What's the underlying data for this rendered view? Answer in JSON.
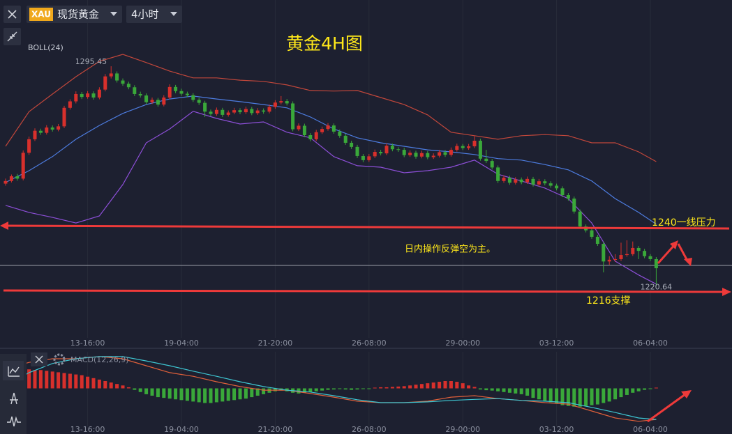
{
  "toolbar": {
    "symbol": "XAU",
    "name": "现货黄金",
    "interval": "4小时"
  },
  "chart_data": [
    {
      "type": "candlestick",
      "title": "黄金4H图",
      "indicator": "BOLL(24)",
      "up_color": "#d8302c",
      "down_color": "#3aa83a",
      "ylim": [
        1203,
        1318
      ],
      "xlim": [
        -1,
        124
      ],
      "xticks": [
        {
          "value": 14,
          "label": "13-16:00"
        },
        {
          "value": 30,
          "label": "19-04:00"
        },
        {
          "value": 46,
          "label": "21-20:00"
        },
        {
          "value": 62,
          "label": "26-08:00"
        },
        {
          "value": 78,
          "label": "29-00:00"
        },
        {
          "value": 94,
          "label": "03-12:00"
        },
        {
          "value": 110,
          "label": "06-04:00"
        }
      ],
      "annotations": [
        "1240一线压力",
        "日内操作反弹空为主。",
        "1216支撑"
      ],
      "candles": [
        [
          1255.5,
          1257.2,
          1254.8,
          1256.4
        ],
        [
          1256.4,
          1258.6,
          1255.9,
          1258.0
        ],
        [
          1258.0,
          1258.8,
          1256.5,
          1257.2
        ],
        [
          1257.2,
          1266.8,
          1256.6,
          1266.0
        ],
        [
          1266.0,
          1271.5,
          1265.3,
          1270.6
        ],
        [
          1270.6,
          1274.3,
          1270.0,
          1273.5
        ],
        [
          1273.5,
          1274.2,
          1272.1,
          1272.8
        ],
        [
          1272.8,
          1275.4,
          1272.2,
          1274.6
        ],
        [
          1274.6,
          1275.3,
          1273.2,
          1273.9
        ],
        [
          1273.9,
          1275.8,
          1273.3,
          1275.0
        ],
        [
          1275.0,
          1282.0,
          1274.4,
          1281.3
        ],
        [
          1281.3,
          1284.2,
          1280.7,
          1283.5
        ],
        [
          1283.5,
          1286.9,
          1282.8,
          1286.0
        ],
        [
          1286.0,
          1286.7,
          1284.3,
          1285.0
        ],
        [
          1285.0,
          1287.0,
          1284.4,
          1286.2
        ],
        [
          1286.2,
          1286.9,
          1284.1,
          1284.8
        ],
        [
          1284.8,
          1288.3,
          1284.2,
          1287.5
        ],
        [
          1287.5,
          1292.8,
          1286.9,
          1292.0
        ],
        [
          1292.0,
          1295.45,
          1291.3,
          1293.0
        ],
        [
          1293.0,
          1293.7,
          1289.9,
          1290.6
        ],
        [
          1290.6,
          1291.3,
          1288.8,
          1289.5
        ],
        [
          1289.5,
          1290.2,
          1287.6,
          1288.3
        ],
        [
          1288.3,
          1289.0,
          1285.3,
          1286.0
        ],
        [
          1286.0,
          1286.8,
          1284.8,
          1285.5
        ],
        [
          1285.5,
          1286.2,
          1282.5,
          1283.2
        ],
        [
          1283.2,
          1284.8,
          1282.6,
          1284.0
        ],
        [
          1284.0,
          1284.7,
          1281.7,
          1282.4
        ],
        [
          1282.4,
          1285.6,
          1281.8,
          1284.8
        ],
        [
          1284.8,
          1289.3,
          1284.2,
          1288.4
        ],
        [
          1288.4,
          1289.1,
          1286.3,
          1287.0
        ],
        [
          1287.0,
          1287.8,
          1285.4,
          1286.1
        ],
        [
          1286.1,
          1286.8,
          1284.9,
          1285.6
        ],
        [
          1285.6,
          1286.3,
          1283.3,
          1284.0
        ],
        [
          1284.0,
          1284.7,
          1282.3,
          1283.0
        ],
        [
          1283.0,
          1283.7,
          1278.2,
          1280.0
        ],
        [
          1280.0,
          1280.7,
          1278.5,
          1279.2
        ],
        [
          1279.2,
          1281.4,
          1278.6,
          1280.6
        ],
        [
          1280.6,
          1281.3,
          1278.2,
          1278.9
        ],
        [
          1278.9,
          1280.4,
          1278.3,
          1279.7
        ],
        [
          1279.7,
          1281.3,
          1279.1,
          1280.5
        ],
        [
          1280.5,
          1281.2,
          1279.1,
          1279.8
        ],
        [
          1279.8,
          1281.7,
          1279.2,
          1280.9
        ],
        [
          1280.9,
          1281.6,
          1278.8,
          1279.5
        ],
        [
          1279.5,
          1281.2,
          1278.9,
          1280.4
        ],
        [
          1280.4,
          1281.1,
          1279.3,
          1280.0
        ],
        [
          1280.0,
          1282.4,
          1279.4,
          1281.6
        ],
        [
          1281.6,
          1283.9,
          1281.0,
          1283.1
        ],
        [
          1283.1,
          1285.3,
          1282.5,
          1283.6
        ],
        [
          1283.6,
          1284.3,
          1282.1,
          1282.8
        ],
        [
          1282.8,
          1283.5,
          1273.3,
          1274.0
        ],
        [
          1274.0,
          1276.0,
          1273.4,
          1275.2
        ],
        [
          1275.2,
          1275.9,
          1271.3,
          1272.0
        ],
        [
          1272.0,
          1272.7,
          1269.9,
          1270.6
        ],
        [
          1270.6,
          1273.8,
          1270.0,
          1273.0
        ],
        [
          1273.0,
          1274.9,
          1272.4,
          1274.1
        ],
        [
          1274.1,
          1276.1,
          1273.5,
          1275.3
        ],
        [
          1275.3,
          1276.0,
          1272.5,
          1273.2
        ],
        [
          1273.2,
          1273.9,
          1271.1,
          1271.8
        ],
        [
          1271.8,
          1272.5,
          1268.7,
          1269.4
        ],
        [
          1269.4,
          1270.1,
          1267.3,
          1268.0
        ],
        [
          1268.0,
          1268.7,
          1264.2,
          1264.9
        ],
        [
          1264.9,
          1265.6,
          1262.8,
          1263.5
        ],
        [
          1263.5,
          1265.6,
          1262.9,
          1264.8
        ],
        [
          1264.8,
          1267.1,
          1264.2,
          1266.3
        ],
        [
          1266.3,
          1267.0,
          1265.1,
          1265.8
        ],
        [
          1265.8,
          1269.2,
          1265.2,
          1268.4
        ],
        [
          1268.4,
          1269.1,
          1266.5,
          1267.2
        ],
        [
          1267.2,
          1267.9,
          1266.3,
          1267.0
        ],
        [
          1267.0,
          1267.7,
          1264.5,
          1265.2
        ],
        [
          1265.2,
          1266.8,
          1264.6,
          1266.0
        ],
        [
          1266.0,
          1266.7,
          1264.0,
          1264.7
        ],
        [
          1264.7,
          1266.7,
          1264.1,
          1265.9
        ],
        [
          1265.9,
          1266.6,
          1263.8,
          1264.5
        ],
        [
          1264.5,
          1265.8,
          1263.9,
          1265.0
        ],
        [
          1265.0,
          1267.0,
          1264.4,
          1266.2
        ],
        [
          1266.2,
          1266.9,
          1264.6,
          1265.3
        ],
        [
          1265.3,
          1267.8,
          1264.7,
          1267.0
        ],
        [
          1267.0,
          1269.1,
          1266.4,
          1268.3
        ],
        [
          1268.3,
          1269.0,
          1266.9,
          1267.6
        ],
        [
          1267.6,
          1269.0,
          1267.0,
          1268.2
        ],
        [
          1268.2,
          1271.6,
          1267.6,
          1270.1
        ],
        [
          1270.1,
          1270.8,
          1263.3,
          1264.0
        ],
        [
          1264.0,
          1267.0,
          1262.5,
          1263.2
        ],
        [
          1263.2,
          1263.9,
          1260.3,
          1261.0
        ],
        [
          1261.0,
          1261.7,
          1255.7,
          1256.4
        ],
        [
          1256.4,
          1258.3,
          1255.8,
          1257.5
        ],
        [
          1257.5,
          1258.2,
          1255.1,
          1255.8
        ],
        [
          1255.8,
          1257.7,
          1255.2,
          1256.9
        ],
        [
          1256.9,
          1257.6,
          1255.3,
          1256.0
        ],
        [
          1256.0,
          1257.9,
          1255.4,
          1257.1
        ],
        [
          1257.1,
          1257.8,
          1254.5,
          1255.2
        ],
        [
          1255.2,
          1257.1,
          1254.6,
          1256.3
        ],
        [
          1256.3,
          1257.0,
          1254.9,
          1255.6
        ],
        [
          1255.6,
          1256.3,
          1254.1,
          1254.8
        ],
        [
          1254.8,
          1255.5,
          1253.2,
          1253.9
        ],
        [
          1253.9,
          1254.6,
          1250.9,
          1251.6
        ],
        [
          1251.6,
          1252.3,
          1249.7,
          1250.4
        ],
        [
          1250.4,
          1251.1,
          1245.3,
          1246.0
        ],
        [
          1246.0,
          1246.7,
          1240.2,
          1240.9
        ],
        [
          1240.9,
          1241.6,
          1238.9,
          1239.6
        ],
        [
          1239.6,
          1240.3,
          1236.7,
          1237.4
        ],
        [
          1237.4,
          1238.1,
          1234.3,
          1235.0
        ],
        [
          1235.0,
          1235.7,
          1225.3,
          1229.0
        ],
        [
          1229.0,
          1230.8,
          1227.9,
          1229.6
        ],
        [
          1229.6,
          1231.5,
          1228.9,
          1229.8
        ],
        [
          1229.8,
          1235.4,
          1229.2,
          1231.2
        ],
        [
          1231.2,
          1236.2,
          1230.6,
          1231.5
        ],
        [
          1231.5,
          1235.8,
          1230.9,
          1233.6
        ],
        [
          1233.6,
          1234.3,
          1229.8,
          1232.6
        ],
        [
          1232.6,
          1233.3,
          1230.1,
          1230.8
        ],
        [
          1230.8,
          1231.5,
          1229.1,
          1229.8
        ],
        [
          1229.8,
          1230.5,
          1220.64,
          1226.7
        ]
      ],
      "bands": {
        "x": [
          0,
          4,
          8,
          12,
          16,
          20,
          24,
          28,
          32,
          36,
          40,
          44,
          48,
          52,
          56,
          60,
          64,
          68,
          72,
          76,
          80,
          84,
          88,
          92,
          96,
          100,
          104,
          108,
          111
        ],
        "upper": {
          "color": "#c2473b",
          "values": [
            1268.2,
            1280,
            1286,
            1291.9,
            1297.1,
            1299.5,
            1296.7,
            1293.8,
            1291.5,
            1291.5,
            1290.7,
            1290.3,
            1289.1,
            1287.2,
            1287,
            1287.2,
            1284.8,
            1282.4,
            1278.9,
            1273,
            1271.8,
            1270.6,
            1271.8,
            1272.2,
            1271.8,
            1269.4,
            1269.4,
            1266.3,
            1263
          ]
        },
        "middle": {
          "color": "#4d7ce0",
          "values": [
            1255.9,
            1259.9,
            1264.7,
            1270.6,
            1275.3,
            1279.4,
            1282.4,
            1284.3,
            1285.3,
            1284.3,
            1283.4,
            1282.4,
            1281.3,
            1278.2,
            1274.1,
            1271.1,
            1269.4,
            1268.2,
            1267,
            1266.3,
            1265.4,
            1264,
            1263.5,
            1262,
            1260.2,
            1256.4,
            1250.4,
            1245.7,
            1241.7
          ]
        },
        "lower": {
          "color": "#8d4fd8",
          "values": [
            1248.1,
            1245.7,
            1244,
            1242.1,
            1244.5,
            1255.2,
            1269.4,
            1274.1,
            1280.1,
            1277.7,
            1275.8,
            1276.5,
            1273,
            1271.1,
            1264.7,
            1261.6,
            1261.1,
            1259.2,
            1259.9,
            1261.1,
            1263.5,
            1258.7,
            1256.4,
            1254,
            1250.4,
            1242.1,
            1229.1,
            1224.4,
            1221.3
          ]
        }
      }
    },
    {
      "type": "macd",
      "label": "MACD(12,26,9)",
      "ylim": [
        -10,
        10
      ],
      "up_color": "#d8302c",
      "down_color": "#3aa83a",
      "histogram": [
        3.0,
        3.8,
        4.8,
        5.2,
        5.2,
        5.0,
        5.0,
        4.8,
        4.6,
        4.4,
        4.2,
        4.0,
        3.8,
        3.6,
        3.2,
        2.8,
        2.4,
        2.0,
        1.6,
        1.2,
        0.8,
        0.3,
        -0.4,
        -1.0,
        -1.6,
        -2.0,
        -2.4,
        -2.6,
        -2.8,
        -3.0,
        -3.2,
        -3.4,
        -3.6,
        -3.8,
        -4.0,
        -4.0,
        -3.8,
        -3.6,
        -3.4,
        -3.2,
        -3.0,
        -2.8,
        -2.4,
        -2.0,
        -1.6,
        -1.2,
        -0.8,
        -0.6,
        -0.8,
        -1.2,
        -1.4,
        -1.2,
        -1.0,
        -0.8,
        -0.6,
        -0.4,
        -0.3,
        -0.2,
        -0.3,
        -0.4,
        -0.3,
        -0.2,
        -0.2,
        0.2,
        0.3,
        0.3,
        0.4,
        0.5,
        0.6,
        0.8,
        1.0,
        1.2,
        1.4,
        1.6,
        1.8,
        2.0,
        2.0,
        1.8,
        1.4,
        0.8,
        0.4,
        -0.3,
        -0.5,
        -0.6,
        -0.8,
        -1.0,
        -1.2,
        -1.4,
        -1.6,
        -2.0,
        -2.6,
        -3.0,
        -3.4,
        -3.8,
        -4.2,
        -4.6,
        -4.8,
        -5.0,
        -5.0,
        -4.8,
        -4.6,
        -4.4,
        -4.0,
        -3.6,
        -3.0,
        -2.4,
        -1.8,
        -1.2,
        -0.8,
        -0.4,
        -0.2,
        0.2
      ],
      "x": [
        0,
        4,
        8,
        12,
        16,
        20,
        24,
        28,
        32,
        36,
        40,
        44,
        48,
        52,
        56,
        60,
        64,
        68,
        72,
        76,
        80,
        84,
        88,
        92,
        96,
        100,
        104,
        108,
        111
      ],
      "macd": {
        "color": "#e0603a",
        "values": [
          5.2,
          7.1,
          8.1,
          8.1,
          8.7,
          8.1,
          6.2,
          4.3,
          3.3,
          1.8,
          0.5,
          -0.5,
          -0.5,
          -1.4,
          -2.4,
          -3.5,
          -3.9,
          -3.9,
          -3.5,
          -2.4,
          -2,
          -2.8,
          -3.3,
          -3.9,
          -4.3,
          -6.2,
          -8.1,
          -9,
          -8.5
        ]
      },
      "signal": {
        "color": "#3ec6d2",
        "values": [
          0.5,
          4.3,
          6.8,
          8.1,
          8.7,
          8.7,
          7.5,
          6.2,
          4.7,
          3.3,
          1.8,
          0.5,
          -0.5,
          -1,
          -2,
          -3.1,
          -3.9,
          -3.9,
          -3.7,
          -3.3,
          -3,
          -2.8,
          -3.3,
          -3.5,
          -3.9,
          -5.2,
          -6.6,
          -8.1,
          -8.5
        ]
      }
    }
  ]
}
